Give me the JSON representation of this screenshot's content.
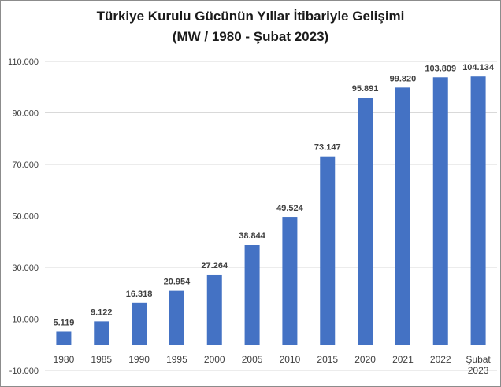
{
  "chart_data": {
    "type": "bar",
    "title": "Türkiye Kurulu Gücünün Yıllar İtibariyle Gelişimi",
    "subtitle": "(MW /  1980 - Şubat 2023)",
    "xlabel": "",
    "ylabel": "",
    "ylim": [
      -10000,
      110000
    ],
    "yticks": [
      -10000,
      10000,
      30000,
      50000,
      70000,
      90000,
      110000
    ],
    "ytick_labels": [
      "-10.000",
      "10.000",
      "30.000",
      "50.000",
      "70.000",
      "90.000",
      "110.000"
    ],
    "grid": true,
    "legend": "none",
    "bar_color": "#4472C4",
    "categories": [
      "1980",
      "1985",
      "1990",
      "1995",
      "2000",
      "2005",
      "2010",
      "2015",
      "2020",
      "2021",
      "2022",
      "Şubat 2023"
    ],
    "category_lines": [
      [
        "1980"
      ],
      [
        "1985"
      ],
      [
        "1990"
      ],
      [
        "1995"
      ],
      [
        "2000"
      ],
      [
        "2005"
      ],
      [
        "2010"
      ],
      [
        "2015"
      ],
      [
        "2020"
      ],
      [
        "2021"
      ],
      [
        "2022"
      ],
      [
        "Şubat",
        "2023"
      ]
    ],
    "values": [
      5119,
      9122,
      16318,
      20954,
      27264,
      38844,
      49524,
      73147,
      95891,
      99820,
      103809,
      104134
    ],
    "value_labels": [
      "5.119",
      "9.122",
      "16.318",
      "20.954",
      "27.264",
      "38.844",
      "49.524",
      "73.147",
      "95.891",
      "99.820",
      "103.809",
      "104.134"
    ]
  }
}
